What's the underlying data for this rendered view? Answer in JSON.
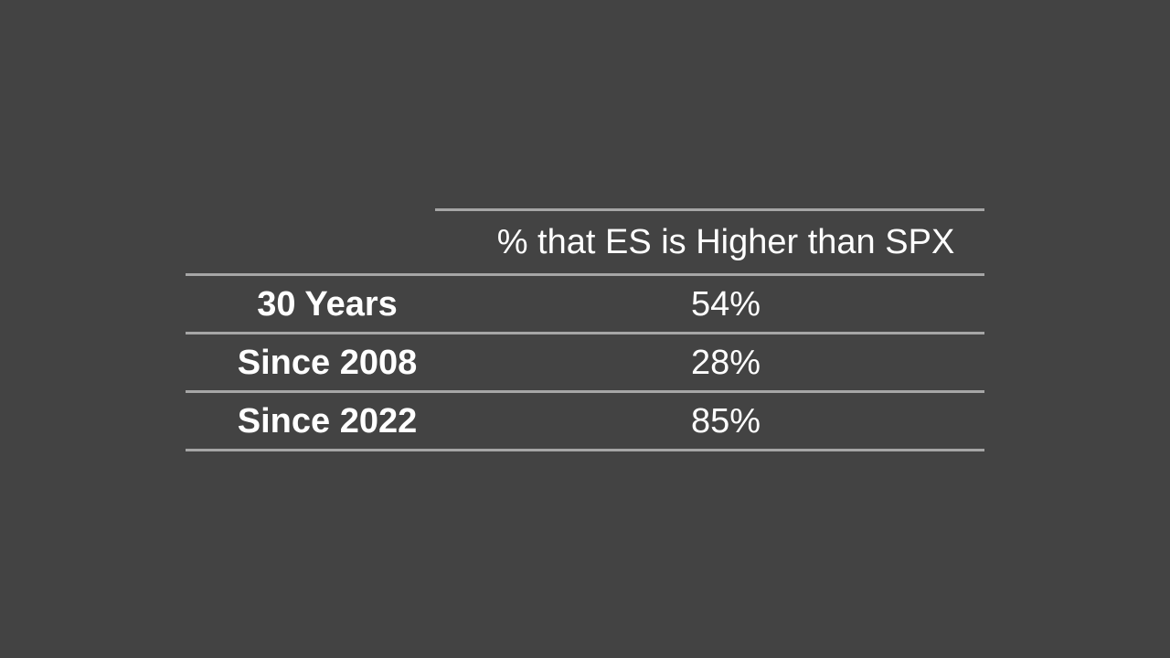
{
  "slide": {
    "background_color": "#434343",
    "table": {
      "border_color": "#a6a6a6",
      "text_color": "#ffffff",
      "header": "% that ES is Higher than SPX",
      "rows": [
        {
          "label": "30 Years",
          "value": "54%"
        },
        {
          "label": "Since 2008",
          "value": "28%"
        },
        {
          "label": "Since 2022",
          "value": "85%"
        }
      ]
    }
  },
  "chart_data": {
    "type": "table",
    "title": "% that ES is Higher than SPX",
    "categories": [
      "30 Years",
      "Since 2008",
      "Since 2022"
    ],
    "values": [
      54,
      28,
      85
    ],
    "value_format": "percent",
    "layout_hints": {
      "label_column_bold": true,
      "gridlines": "horizontal-only",
      "theme": "dark"
    }
  }
}
